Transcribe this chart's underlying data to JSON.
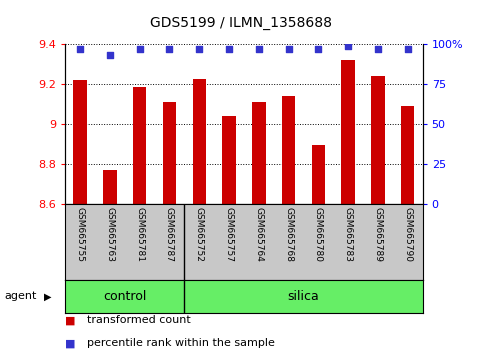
{
  "title": "GDS5199 / ILMN_1358688",
  "samples": [
    "GSM665755",
    "GSM665763",
    "GSM665781",
    "GSM665787",
    "GSM665752",
    "GSM665757",
    "GSM665764",
    "GSM665768",
    "GSM665780",
    "GSM665783",
    "GSM665789",
    "GSM665790"
  ],
  "red_values": [
    9.22,
    8.77,
    9.185,
    9.11,
    9.225,
    9.04,
    9.11,
    9.14,
    8.895,
    9.32,
    9.24,
    9.09
  ],
  "blue_values": [
    97,
    93,
    97,
    97,
    97,
    97,
    97,
    97,
    97,
    99,
    97,
    97
  ],
  "ymin": 8.6,
  "ymax": 9.4,
  "yticks": [
    8.6,
    8.8,
    9.0,
    9.2,
    9.4
  ],
  "ytick_labels": [
    "8.6",
    "8.8",
    "9",
    "9.2",
    "9.4"
  ],
  "right_yticks": [
    0,
    25,
    50,
    75,
    100
  ],
  "right_ytick_labels": [
    "0",
    "25",
    "50",
    "75",
    "100%"
  ],
  "bar_color": "#cc0000",
  "dot_color": "#3333cc",
  "control_label": "control",
  "silica_label": "silica",
  "agent_label": "agent",
  "control_count": 4,
  "total_count": 12,
  "legend_red": "transformed count",
  "legend_blue": "percentile rank within the sample",
  "green_color": "#66ee66",
  "gray_color": "#c8c8c8",
  "bar_width": 0.45
}
